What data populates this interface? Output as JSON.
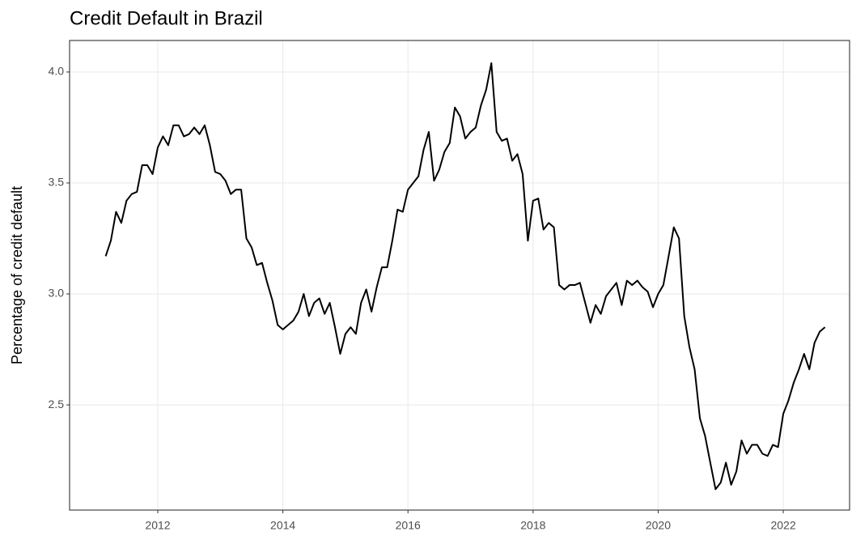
{
  "chart_data": {
    "type": "line",
    "title": "Credit Default in Brazil",
    "y_label": "Percentage of credit default",
    "x": [
      2011.167,
      2011.25,
      2011.333,
      2011.417,
      2011.5,
      2011.583,
      2011.667,
      2011.75,
      2011.833,
      2011.917,
      2012,
      2012.083,
      2012.167,
      2012.25,
      2012.333,
      2012.417,
      2012.5,
      2012.583,
      2012.667,
      2012.75,
      2012.833,
      2012.917,
      2013,
      2013.083,
      2013.167,
      2013.25,
      2013.333,
      2013.417,
      2013.5,
      2013.583,
      2013.667,
      2013.75,
      2013.833,
      2013.917,
      2014,
      2014.083,
      2014.167,
      2014.25,
      2014.333,
      2014.417,
      2014.5,
      2014.583,
      2014.667,
      2014.75,
      2014.833,
      2014.917,
      2015,
      2015.083,
      2015.167,
      2015.25,
      2015.333,
      2015.417,
      2015.5,
      2015.583,
      2015.667,
      2015.75,
      2015.833,
      2015.917,
      2016,
      2016.083,
      2016.167,
      2016.25,
      2016.333,
      2016.417,
      2016.5,
      2016.583,
      2016.667,
      2016.75,
      2016.833,
      2016.917,
      2017,
      2017.083,
      2017.167,
      2017.25,
      2017.333,
      2017.417,
      2017.5,
      2017.583,
      2017.667,
      2017.75,
      2017.833,
      2017.917,
      2018,
      2018.083,
      2018.167,
      2018.25,
      2018.333,
      2018.417,
      2018.5,
      2018.583,
      2018.667,
      2018.75,
      2018.833,
      2018.917,
      2019,
      2019.083,
      2019.167,
      2019.25,
      2019.333,
      2019.417,
      2019.5,
      2019.583,
      2019.667,
      2019.75,
      2019.833,
      2019.917,
      2020,
      2020.083,
      2020.167,
      2020.25,
      2020.333,
      2020.417,
      2020.5,
      2020.583,
      2020.667,
      2020.75,
      2020.833,
      2020.917,
      2021,
      2021.083,
      2021.167,
      2021.25,
      2021.333,
      2021.417,
      2021.5,
      2021.583,
      2021.667,
      2021.75,
      2021.833,
      2021.917,
      2022,
      2022.083,
      2022.167,
      2022.25,
      2022.333,
      2022.417,
      2022.5,
      2022.583,
      2022.667
    ],
    "series": [
      {
        "name": "Credit default",
        "color": "#000000",
        "values": [
          3.17,
          3.24,
          3.37,
          3.32,
          3.42,
          3.45,
          3.46,
          3.58,
          3.58,
          3.54,
          3.66,
          3.71,
          3.67,
          3.76,
          3.76,
          3.71,
          3.72,
          3.75,
          3.72,
          3.76,
          3.67,
          3.55,
          3.54,
          3.51,
          3.45,
          3.47,
          3.47,
          3.25,
          3.21,
          3.13,
          3.14,
          3.05,
          2.97,
          2.86,
          2.84,
          2.86,
          2.88,
          2.92,
          3.0,
          2.9,
          2.96,
          2.98,
          2.91,
          2.96,
          2.85,
          2.73,
          2.82,
          2.85,
          2.82,
          2.96,
          3.02,
          2.92,
          3.03,
          3.12,
          3.12,
          3.24,
          3.38,
          3.37,
          3.47,
          3.5,
          3.53,
          3.65,
          3.73,
          3.51,
          3.56,
          3.64,
          3.68,
          3.84,
          3.8,
          3.7,
          3.73,
          3.75,
          3.85,
          3.92,
          4.04,
          3.73,
          3.69,
          3.7,
          3.6,
          3.63,
          3.54,
          3.24,
          3.42,
          3.43,
          3.29,
          3.32,
          3.3,
          3.04,
          3.02,
          3.04,
          3.04,
          3.05,
          2.96,
          2.87,
          2.95,
          2.91,
          2.99,
          3.02,
          3.05,
          2.95,
          3.06,
          3.04,
          3.06,
          3.03,
          3.01,
          2.94,
          3.0,
          3.04,
          3.17,
          3.3,
          3.25,
          2.9,
          2.76,
          2.66,
          2.44,
          2.36,
          2.24,
          2.12,
          2.15,
          2.24,
          2.14,
          2.2,
          2.34,
          2.28,
          2.32,
          2.32,
          2.28,
          2.27,
          2.32,
          2.31,
          2.46,
          2.52,
          2.6,
          2.66,
          2.73,
          2.66,
          2.78,
          2.83,
          2.85
        ]
      }
    ],
    "xlim": [
      2010.59,
      2023.06
    ],
    "xticks": [
      2012,
      2014,
      2016,
      2018,
      2020,
      2022
    ],
    "ylim": [
      2.026,
      4.142
    ],
    "yticks": [
      2.5,
      {
        "value": 3,
        "label": "3.0"
      },
      3.5,
      {
        "value": 4,
        "label": "4.0"
      }
    ],
    "grid": true
  }
}
